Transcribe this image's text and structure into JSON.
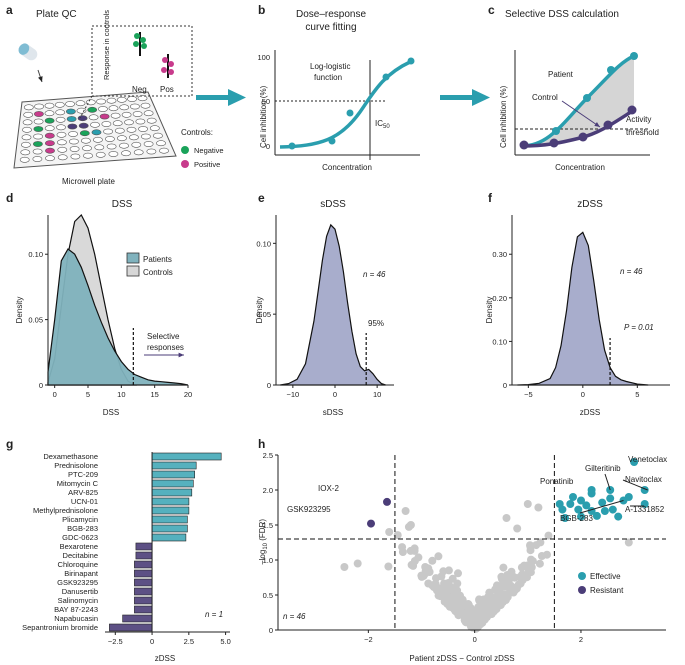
{
  "colors": {
    "teal": "#2a9eae",
    "purple": "#4b3d78",
    "green": "#1aa35a",
    "magenta": "#c83b8c",
    "grey": "#c8c8c8",
    "kde_fill": "#a3a9c9",
    "kde_patient": "#80b2bd",
    "kde_control": "#d7d7d7"
  },
  "letters": {
    "a": "a",
    "b": "b",
    "c": "c",
    "d": "d",
    "e": "e",
    "f": "f",
    "g": "g",
    "h": "h"
  },
  "panel_a": {
    "title": "Plate QC",
    "response_label": "Response in controls",
    "neg": "Neg",
    "pos": "Pos",
    "plate_label": "Microwell plate",
    "controls_title": "Controls:",
    "negative": "Negative",
    "positive": "Positive"
  },
  "panel_b": {
    "title_line1": "Dose–response",
    "title_line2": "curve fitting",
    "fn_line1": "Log-logistic",
    "fn_line2": "function",
    "ic50": "IC",
    "ic50_sub": "50",
    "ylabel": "Cell inhibition (%)",
    "xlabel": "Concentration",
    "y100": "100",
    "y50": "50",
    "y0": "0"
  },
  "panel_c": {
    "title": "Selective DSS calculation",
    "patient": "Patient",
    "control": "Control",
    "activity": "Activity",
    "threshold": "threshold",
    "ylabel": "Cell inhibition (%)",
    "xlabel": "Concentration"
  },
  "chart_data": [
    {
      "id": "d",
      "type": "area",
      "title": "DSS",
      "xlabel": "DSS",
      "ylabel": "Density",
      "xlim": [
        -1,
        20
      ],
      "ylim": [
        0,
        0.13
      ],
      "xticks": [
        "0",
        "5",
        "10",
        "15",
        "20"
      ],
      "yticks": [
        "0",
        "0.05",
        "0.10"
      ],
      "series": [
        {
          "name": "Patients",
          "x": [
            -1,
            0,
            1,
            2,
            3,
            4,
            5,
            6,
            7,
            8,
            9,
            10,
            11,
            12,
            13,
            14,
            15,
            16,
            17,
            18,
            19,
            20
          ],
          "y": [
            0.01,
            0.05,
            0.095,
            0.104,
            0.1,
            0.09,
            0.076,
            0.061,
            0.048,
            0.036,
            0.026,
            0.018,
            0.012,
            0.008,
            0.006,
            0.004,
            0.003,
            0.0025,
            0.002,
            0.0015,
            0.001,
            0
          ]
        },
        {
          "name": "Controls",
          "x": [
            -1,
            0,
            1,
            2,
            3,
            4,
            5,
            6,
            7,
            8,
            9,
            10,
            11,
            12
          ],
          "y": [
            0.002,
            0.02,
            0.06,
            0.1,
            0.125,
            0.13,
            0.12,
            0.1,
            0.075,
            0.05,
            0.028,
            0.012,
            0.003,
            0
          ]
        }
      ],
      "annotations": {
        "threshold_x": 11.8,
        "selective_line1": "Selective",
        "selective_line2": "responses",
        "legend_patients": "Patients",
        "legend_controls": "Controls"
      }
    },
    {
      "id": "e",
      "type": "area",
      "title": "sDSS",
      "xlabel": "sDSS",
      "ylabel": "Density",
      "xlim": [
        -14,
        14
      ],
      "ylim": [
        0,
        0.12
      ],
      "xticks": [
        "−10",
        "0",
        "10"
      ],
      "yticks": [
        "0",
        "0.05",
        "0.10"
      ],
      "series": [
        {
          "name": "sDSS",
          "x": [
            -13,
            -11,
            -9,
            -7,
            -5,
            -4,
            -3,
            -2,
            -1,
            0,
            1,
            2,
            3,
            4,
            5,
            6,
            7,
            8,
            9,
            10,
            11,
            12
          ],
          "y": [
            0,
            0.001,
            0.004,
            0.015,
            0.045,
            0.066,
            0.088,
            0.105,
            0.113,
            0.11,
            0.098,
            0.08,
            0.058,
            0.038,
            0.022,
            0.013,
            0.01,
            0.011,
            0.008,
            0.004,
            0.001,
            0
          ]
        }
      ],
      "annotations": {
        "n": "n = 46",
        "pct": "95%",
        "threshold_x": 7.4
      }
    },
    {
      "id": "f",
      "type": "area",
      "title": "zDSS",
      "xlabel": "zDSS",
      "ylabel": "Density",
      "xlim": [
        -6.5,
        8
      ],
      "ylim": [
        0,
        0.39
      ],
      "xticks": [
        "−5",
        "0",
        "5"
      ],
      "yticks": [
        "0",
        "0.10",
        "0.20",
        "0.30"
      ],
      "series": [
        {
          "name": "zDSS",
          "x": [
            -6,
            -5,
            -4,
            -3,
            -2.5,
            -2,
            -1.5,
            -1,
            -0.5,
            0,
            0.5,
            1,
            1.5,
            2,
            2.5,
            3,
            3.5,
            4,
            5,
            6
          ],
          "y": [
            0,
            0.001,
            0.004,
            0.015,
            0.04,
            0.09,
            0.17,
            0.27,
            0.34,
            0.35,
            0.32,
            0.24,
            0.15,
            0.08,
            0.04,
            0.02,
            0.012,
            0.008,
            0.002,
            0
          ]
        }
      ],
      "annotations": {
        "n": "n = 46",
        "p": "P = 0.01",
        "threshold_x": 2.5
      }
    },
    {
      "id": "g",
      "type": "bar",
      "orientation": "horizontal",
      "xlabel": "zDSS",
      "xlim": [
        -3.2,
        5.3
      ],
      "xticks": [
        "−2.5",
        "0",
        "2.5",
        "5.0"
      ],
      "categories": [
        "Dexamethasone",
        "Prednisolone",
        "PTC-209",
        "Mitomycin C",
        "ARV-825",
        "UCN-01",
        "Methylprednisolone",
        "Plicamycin",
        "BGB-283",
        "GDC-0623",
        "Bexarotene",
        "Decitabine",
        "Chloroquine",
        "Birinapant",
        "GSK923295",
        "Danusertib",
        "Salinomycin",
        "BAY 87-2243",
        "Napabucasin",
        "Sepantronium bromide"
      ],
      "values": [
        4.7,
        3.0,
        2.9,
        2.8,
        2.7,
        2.5,
        2.5,
        2.4,
        2.4,
        2.3,
        -1.1,
        -1.1,
        -1.2,
        -1.2,
        -1.2,
        -1.2,
        -1.2,
        -1.2,
        -2.0,
        -2.9
      ],
      "annotations": {
        "n": "n = 1"
      }
    },
    {
      "id": "h",
      "type": "scatter",
      "xlabel": "Patient zDSS − Control zDSS",
      "ylabel": "−log10 (FDR)",
      "xlim": [
        -3.7,
        3.6
      ],
      "ylim": [
        0,
        2.5
      ],
      "xticks": [
        "−2",
        "0",
        "2"
      ],
      "yticks": [
        "0",
        "0.5",
        "1.0",
        "1.5",
        "2.0",
        "2.5"
      ],
      "thresholds": {
        "x_neg": -1.5,
        "x_pos": 1.5,
        "y": 1.3
      },
      "labels": [
        {
          "name": "Venetoclax",
          "x": 3.0,
          "y": 2.4
        },
        {
          "name": "Gilteritinib",
          "x": 2.55,
          "y": 2.0
        },
        {
          "name": "Navitoclax",
          "x": 3.2,
          "y": 2.0
        },
        {
          "name": "Ponatinib",
          "x": 2.2,
          "y": 2.0
        },
        {
          "name": "BGB-283",
          "x": 2.8,
          "y": 1.85
        },
        {
          "name": "A-1331852",
          "x": 3.15,
          "y": 1.8
        },
        {
          "name": "IOX-2",
          "x": -1.65,
          "y": 1.83
        },
        {
          "name": "GSK923295",
          "x": -1.95,
          "y": 1.52
        }
      ],
      "legend": {
        "effective": "Effective",
        "resistant": "Resistant"
      },
      "annotations": {
        "n": "n = 46",
        "ylabel_pre": "−log",
        "ylabel_sub": "10",
        "ylabel_post": " (FDR)"
      }
    }
  ]
}
